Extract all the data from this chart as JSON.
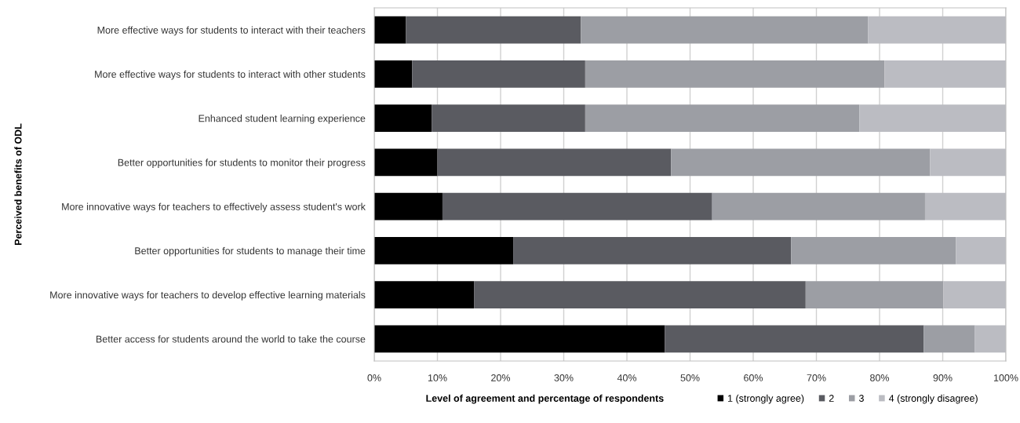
{
  "chart_data": {
    "type": "bar",
    "orientation": "horizontal",
    "stacked": true,
    "xlabel": "Level of agreement and percentage of respondents",
    "ylabel": "Perceived benefits of ODL",
    "categories": [
      "More effective ways for students to interact with their teachers",
      "More effective ways for students to interact with other students",
      "Enhanced student learning experience",
      "Better opportunities for students to monitor their progress",
      "More innovative ways for teachers to effectively assess student's work",
      "Better opportunities for students to manage their time",
      "More innovative ways for teachers to develop effective learning materials",
      "Better access for students around the world to take the course"
    ],
    "series": [
      {
        "name": "1 (strongly agree)",
        "color": "#000000",
        "values": [
          5,
          6,
          9.1,
          10,
          10.8,
          22,
          15.8,
          46
        ]
      },
      {
        "name": "2",
        "color": "#5a5b61",
        "values": [
          27.7,
          27.4,
          24.3,
          37,
          42.7,
          44,
          52.5,
          41
        ]
      },
      {
        "name": "3",
        "color": "#9c9ea4",
        "values": [
          45.5,
          47.4,
          43.4,
          41,
          33.7,
          26.1,
          21.8,
          8.1
        ]
      },
      {
        "name": "4 (strongly disagree)",
        "color": "#bbbcc2",
        "values": [
          21.8,
          19.2,
          23.2,
          12,
          12.8,
          7.9,
          9.9,
          4.9
        ]
      }
    ],
    "xlim": [
      0,
      100
    ],
    "xticks": [
      {
        "value": 0,
        "label": "0%"
      },
      {
        "value": 10,
        "label": "10%"
      },
      {
        "value": 20,
        "label": "20%"
      },
      {
        "value": 30,
        "label": "30%"
      },
      {
        "value": 40,
        "label": "40%"
      },
      {
        "value": 50,
        "label": "50%"
      },
      {
        "value": 60,
        "label": "60%"
      },
      {
        "value": 70,
        "label": "70%"
      },
      {
        "value": 80,
        "label": "80%"
      },
      {
        "value": 90,
        "label": "90%"
      },
      {
        "value": 100,
        "label": "100%"
      }
    ],
    "grid": "x",
    "legend": "bottom right"
  }
}
